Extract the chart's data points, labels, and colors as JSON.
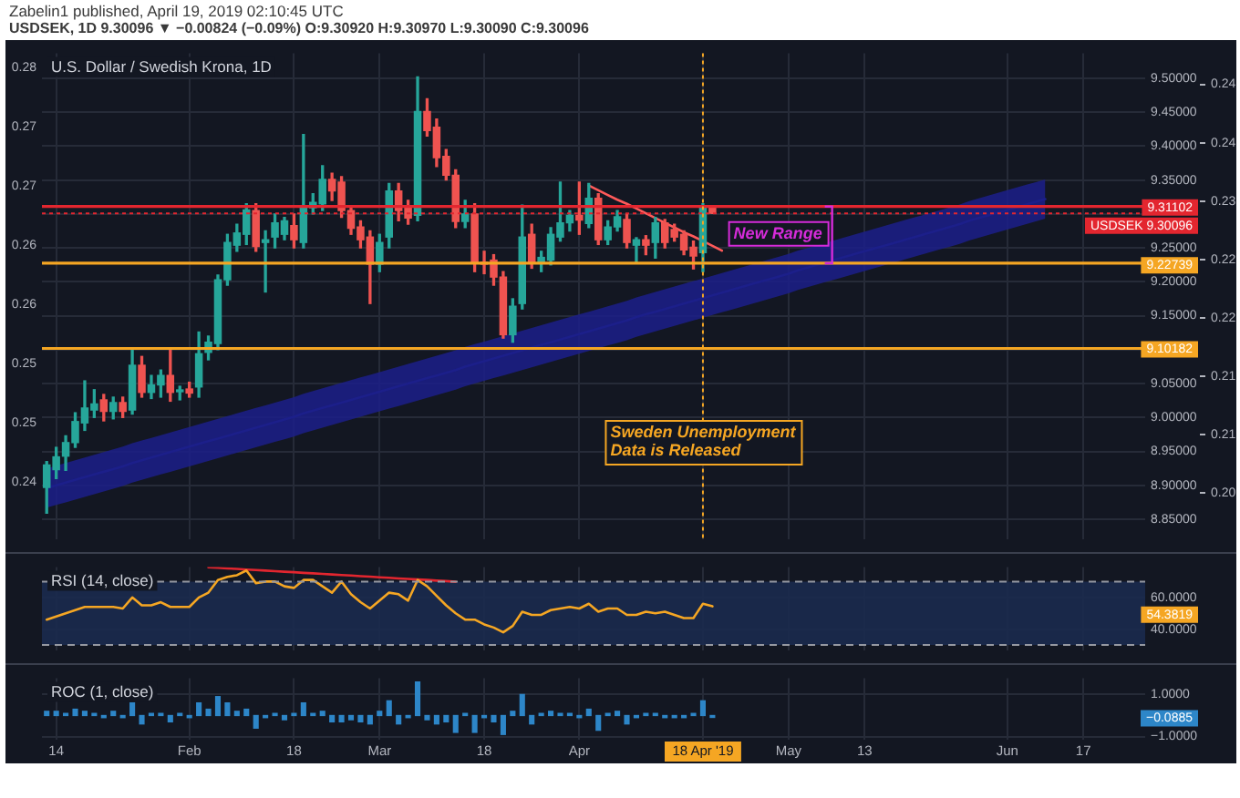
{
  "chart_data": [
    {
      "type": "candlestick",
      "title": "U.S. Dollar / Swedish Krona, 1D",
      "subtitle": "USDSEK, 1D  9.30096 ▼ −0.00824 (−0.09%)  O:9.30920  H:9.30970  L:9.30090  C:9.30096",
      "annotations": [
        "Zabelin1 published, April 19, 2019 02:10:45 UTC",
        "New Range"
      ],
      "categories": [
        null,
        "14",
        null,
        null,
        null,
        null,
        null,
        null,
        null,
        null,
        null,
        null,
        null,
        null,
        null,
        "Feb",
        null,
        null,
        null,
        null,
        null,
        null,
        null,
        null,
        null,
        null,
        "18",
        null,
        null,
        null,
        null,
        null,
        null,
        null,
        null,
        "Mar",
        null,
        null,
        null,
        null,
        null,
        null,
        null,
        null,
        null,
        null,
        "18",
        null,
        null,
        null,
        null,
        null,
        null,
        null,
        null,
        null,
        "Apr",
        null,
        null,
        null,
        null,
        null,
        null,
        null,
        null,
        null,
        null,
        null,
        null,
        "18 Apr '19",
        null,
        null,
        null,
        null,
        null,
        null,
        null,
        null,
        "May",
        null,
        null,
        null,
        null,
        null,
        null,
        null,
        "13",
        null,
        null,
        null,
        null,
        null,
        null,
        null,
        null,
        null,
        null,
        null,
        null,
        null,
        null,
        "Jun",
        null,
        null,
        null,
        null,
        null,
        null,
        null,
        "17",
        null,
        null,
        null,
        null,
        null,
        null
      ],
      "ohlc": [
        [
          8.897,
          8.935,
          8.859,
          8.93
        ],
        [
          8.923,
          8.956,
          8.91,
          8.942
        ],
        [
          8.943,
          8.973,
          8.922,
          8.963
        ],
        [
          8.963,
          9.007,
          8.956,
          8.994
        ],
        [
          8.992,
          9.054,
          8.981,
          9.014
        ],
        [
          9.011,
          9.041,
          9.0,
          9.02
        ],
        [
          9.026,
          9.034,
          8.995,
          9.009
        ],
        [
          9.009,
          9.03,
          8.998,
          9.022
        ],
        [
          9.022,
          9.03,
          9.0,
          9.009
        ],
        [
          9.011,
          9.1,
          9.005,
          9.077
        ],
        [
          9.077,
          9.09,
          9.03,
          9.037
        ],
        [
          9.037,
          9.062,
          9.028,
          9.048
        ],
        [
          9.048,
          9.07,
          9.03,
          9.062
        ],
        [
          9.062,
          9.1,
          9.024,
          9.037
        ],
        [
          9.038,
          9.046,
          9.026,
          9.04
        ],
        [
          9.042,
          9.052,
          9.03,
          9.036
        ],
        [
          9.045,
          9.126,
          9.03,
          9.094
        ],
        [
          9.096,
          9.12,
          9.085,
          9.111
        ],
        [
          9.109,
          9.21,
          9.1,
          9.203
        ],
        [
          9.203,
          9.27,
          9.195,
          9.258
        ],
        [
          9.254,
          9.285,
          9.245,
          9.272
        ],
        [
          9.27,
          9.315,
          9.255,
          9.306
        ],
        [
          9.305,
          9.315,
          9.245,
          9.252
        ],
        [
          9.258,
          9.275,
          9.185,
          9.262
        ],
        [
          9.266,
          9.3,
          9.25,
          9.287
        ],
        [
          9.27,
          9.295,
          9.262,
          9.29
        ],
        [
          9.283,
          9.3,
          9.25,
          9.262
        ],
        [
          9.258,
          9.417,
          9.25,
          9.309
        ],
        [
          9.309,
          9.33,
          9.3,
          9.317
        ],
        [
          9.315,
          9.371,
          9.305,
          9.351
        ],
        [
          9.351,
          9.36,
          9.32,
          9.334
        ],
        [
          9.347,
          9.355,
          9.295,
          9.305
        ],
        [
          9.305,
          9.31,
          9.27,
          9.279
        ],
        [
          9.281,
          9.29,
          9.25,
          9.262
        ],
        [
          9.266,
          9.275,
          9.168,
          9.226
        ],
        [
          9.226,
          9.27,
          9.215,
          9.258
        ],
        [
          9.266,
          9.345,
          9.25,
          9.334
        ],
        [
          9.334,
          9.345,
          9.29,
          9.305
        ],
        [
          9.309,
          9.32,
          9.285,
          9.294
        ],
        [
          9.298,
          9.502,
          9.29,
          9.451
        ],
        [
          9.451,
          9.47,
          9.415,
          9.423
        ],
        [
          9.428,
          9.44,
          9.37,
          9.383
        ],
        [
          9.385,
          9.395,
          9.35,
          9.357
        ],
        [
          9.357,
          9.365,
          9.28,
          9.289
        ],
        [
          9.289,
          9.32,
          9.28,
          9.3
        ],
        [
          9.3,
          9.315,
          9.215,
          9.228
        ],
        [
          9.229,
          9.245,
          9.212,
          9.226
        ],
        [
          9.232,
          9.24,
          9.195,
          9.207
        ],
        [
          9.207,
          9.215,
          9.117,
          9.122
        ],
        [
          9.122,
          9.175,
          9.111,
          9.164
        ],
        [
          9.168,
          9.313,
          9.16,
          9.266
        ],
        [
          9.27,
          9.285,
          9.22,
          9.228
        ],
        [
          9.228,
          9.245,
          9.215,
          9.236
        ],
        [
          9.232,
          9.28,
          9.225,
          9.27
        ],
        [
          9.266,
          9.347,
          9.26,
          9.287
        ],
        [
          9.287,
          9.305,
          9.275,
          9.298
        ],
        [
          9.298,
          9.347,
          9.27,
          9.291
        ],
        [
          9.286,
          9.345,
          9.28,
          9.323
        ],
        [
          9.323,
          9.33,
          9.255,
          9.262
        ],
        [
          9.262,
          9.29,
          9.255,
          9.281
        ],
        [
          9.281,
          9.305,
          9.275,
          9.296
        ],
        [
          9.292,
          9.3,
          9.25,
          9.258
        ],
        [
          9.254,
          9.265,
          9.228,
          9.262
        ],
        [
          9.262,
          9.268,
          9.24,
          9.254
        ],
        [
          9.258,
          9.295,
          9.235,
          9.287
        ],
        [
          9.287,
          9.292,
          9.25,
          9.258
        ],
        [
          9.277,
          9.285,
          9.26,
          9.266
        ],
        [
          9.27,
          9.275,
          9.24,
          9.247
        ],
        [
          9.251,
          9.26,
          9.219,
          9.238
        ],
        [
          9.243,
          9.315,
          9.215,
          9.3092
        ],
        [
          9.3092,
          9.3097,
          9.3009,
          9.30096
        ],
        null,
        null,
        null,
        null,
        null,
        null,
        null,
        null,
        null,
        null,
        null,
        null,
        null,
        null,
        null,
        null,
        null,
        null,
        null,
        null,
        null,
        null,
        null,
        null,
        null,
        null,
        null,
        null,
        null,
        null,
        null,
        null,
        null,
        null,
        null,
        null,
        null,
        null,
        null,
        null,
        null,
        null,
        null,
        null,
        null
      ],
      "colors": [
        "#26a69a",
        "#26a69a",
        "#26a69a",
        "#26a69a",
        "#26a69a",
        "#26a69a",
        "#ef5350",
        "#26a69a",
        "#ef5350",
        "#26a69a",
        "#ef5350",
        "#26a69a",
        "#26a69a",
        "#ef5350",
        "#26a69a",
        "#ef5350",
        "#26a69a",
        "#26a69a",
        "#26a69a",
        "#26a69a",
        "#26a69a",
        "#26a69a",
        "#ef5350",
        "#26a69a",
        "#26a69a",
        "#26a69a",
        "#ef5350",
        "#26a69a",
        "#26a69a",
        "#26a69a",
        "#ef5350",
        "#ef5350",
        "#ef5350",
        "#ef5350",
        "#ef5350",
        "#26a69a",
        "#26a69a",
        "#ef5350",
        "#ef5350",
        "#26a69a",
        "#ef5350",
        "#ef5350",
        "#ef5350",
        "#ef5350",
        "#26a69a",
        "#ef5350",
        "#ef5350",
        "#ef5350",
        "#ef5350",
        "#26a69a",
        "#26a69a",
        "#ef5350",
        "#26a69a",
        "#26a69a",
        "#26a69a",
        "#26a69a",
        "#ef5350",
        "#26a69a",
        "#ef5350",
        "#26a69a",
        "#26a69a",
        "#ef5350",
        "#26a69a",
        "#ef5350",
        "#26a69a",
        "#ef5350",
        "#ef5350",
        "#ef5350",
        "#ef5350",
        "#26a69a",
        "#ef5350",
        null,
        null,
        null,
        null,
        null,
        null,
        null,
        null,
        null,
        null,
        null,
        null,
        null,
        null,
        null,
        null,
        null,
        null,
        null,
        null,
        null,
        null,
        null,
        null,
        null,
        null,
        null,
        null,
        null,
        null,
        null,
        null,
        null,
        null,
        null,
        null,
        null,
        null,
        null,
        null,
        null,
        null,
        null,
        null,
        null
      ],
      "series": [
        {
          "type": "line",
          "color": "#ff5a5a",
          "values": [
            null,
            null,
            null,
            null,
            null,
            null,
            null,
            null,
            null,
            null,
            null,
            null,
            null,
            null,
            null,
            null,
            null,
            null,
            null,
            null,
            null,
            null,
            null,
            null,
            null,
            null,
            null,
            null,
            null,
            null,
            null,
            null,
            null,
            null,
            null,
            null,
            null,
            null,
            null,
            null,
            null,
            null,
            null,
            null,
            null,
            null,
            null,
            null,
            null,
            null,
            null,
            null,
            null,
            null,
            null,
            null,
            null,
            9.342,
            9.335,
            9.328,
            9.321,
            9.315,
            9.308,
            9.301,
            9.294,
            9.287,
            9.28,
            9.273,
            9.267,
            9.26,
            9.253,
            9.246,
            null,
            null,
            null,
            null,
            null,
            null,
            null,
            null,
            null,
            null,
            null,
            null,
            null,
            null,
            null,
            null,
            null,
            null,
            null,
            null,
            null,
            null,
            null,
            null,
            null,
            null,
            null,
            null,
            null,
            null,
            null,
            null,
            null,
            null,
            null,
            null,
            null,
            null,
            null,
            null,
            null,
            null,
            null,
            null
          ]
        },
        {
          "type": "line",
          "color": "#1c1f8a",
          "values": [
            8.896,
            8.9,
            8.904,
            8.908,
            8.912,
            8.916,
            8.92,
            8.924,
            8.928,
            8.933,
            8.937,
            8.941,
            8.945,
            8.949,
            8.953,
            8.957,
            8.961,
            8.965,
            8.969,
            8.973,
            8.977,
            8.981,
            8.985,
            8.989,
            8.993,
            8.997,
            9.001,
            9.006,
            9.01,
            9.014,
            9.018,
            9.022,
            9.026,
            9.03,
            9.034,
            9.038,
            9.042,
            9.046,
            9.05,
            9.054,
            9.058,
            9.062,
            9.066,
            9.07,
            9.075,
            9.079,
            9.083,
            9.087,
            9.091,
            9.095,
            9.099,
            9.103,
            9.107,
            9.111,
            9.115,
            9.119,
            9.123,
            9.127,
            9.131,
            9.135,
            9.139,
            9.143,
            9.148,
            9.152,
            9.156,
            9.16,
            9.164,
            9.168,
            9.172,
            9.176,
            9.18,
            9.184,
            9.188,
            9.192,
            9.196,
            9.2,
            9.204,
            9.208,
            9.212,
            9.217,
            9.221,
            9.225,
            9.229,
            9.233,
            9.237,
            9.241,
            9.245,
            9.249,
            9.253,
            9.257,
            9.261,
            9.265,
            9.269,
            9.273,
            9.277,
            9.281,
            9.285,
            9.29,
            9.294,
            9.298,
            9.302,
            9.306,
            9.31,
            9.314,
            9.318,
            9.322,
            null,
            null,
            null,
            null,
            null,
            null,
            null,
            null,
            null,
            null
          ],
          "lower": [
            8.867,
            8.871,
            8.875,
            8.879,
            8.883,
            8.887,
            8.891,
            8.895,
            8.899,
            8.904,
            8.908,
            8.912,
            8.916,
            8.92,
            8.924,
            8.928,
            8.932,
            8.936,
            8.94,
            8.944,
            8.948,
            8.952,
            8.956,
            8.96,
            8.964,
            8.968,
            8.972,
            8.977,
            8.981,
            8.985,
            8.989,
            8.993,
            8.997,
            9.001,
            9.005,
            9.009,
            9.013,
            9.017,
            9.021,
            9.025,
            9.029,
            9.033,
            9.037,
            9.041,
            9.046,
            9.05,
            9.054,
            9.058,
            9.062,
            9.066,
            9.07,
            9.074,
            9.078,
            9.082,
            9.086,
            9.09,
            9.094,
            9.098,
            9.102,
            9.106,
            9.11,
            9.114,
            9.119,
            9.123,
            9.127,
            9.131,
            9.135,
            9.139,
            9.143,
            9.147,
            9.151,
            9.155,
            9.159,
            9.163,
            9.167,
            9.171,
            9.175,
            9.179,
            9.183,
            9.188,
            9.192,
            9.196,
            9.2,
            9.204,
            9.208,
            9.212,
            9.216,
            9.22,
            9.224,
            9.228,
            9.232,
            9.236,
            9.24,
            9.244,
            9.248,
            9.252,
            9.256,
            9.261,
            9.265,
            9.269,
            9.273,
            9.277,
            9.281,
            9.285,
            9.289,
            9.293,
            null,
            null,
            null,
            null,
            null,
            null,
            null,
            null,
            null,
            null
          ],
          "upper": [
            8.925,
            8.929,
            8.933,
            8.937,
            8.941,
            8.945,
            8.949,
            8.953,
            8.957,
            8.962,
            8.966,
            8.97,
            8.974,
            8.978,
            8.982,
            8.986,
            8.99,
            8.994,
            8.998,
            9.002,
            9.006,
            9.01,
            9.014,
            9.018,
            9.022,
            9.026,
            9.03,
            9.035,
            9.039,
            9.043,
            9.047,
            9.051,
            9.055,
            9.059,
            9.063,
            9.067,
            9.071,
            9.075,
            9.079,
            9.083,
            9.087,
            9.091,
            9.095,
            9.099,
            9.104,
            9.108,
            9.112,
            9.116,
            9.12,
            9.124,
            9.128,
            9.132,
            9.136,
            9.14,
            9.144,
            9.148,
            9.152,
            9.156,
            9.16,
            9.164,
            9.168,
            9.172,
            9.177,
            9.181,
            9.185,
            9.189,
            9.193,
            9.197,
            9.201,
            9.205,
            9.209,
            9.213,
            9.217,
            9.221,
            9.225,
            9.229,
            9.233,
            9.237,
            9.241,
            9.246,
            9.25,
            9.254,
            9.258,
            9.262,
            9.266,
            9.27,
            9.274,
            9.278,
            9.282,
            9.286,
            9.29,
            9.294,
            9.298,
            9.302,
            9.306,
            9.31,
            9.314,
            9.319,
            9.323,
            9.327,
            9.331,
            9.335,
            9.339,
            9.343,
            9.347,
            9.351,
            null,
            null,
            null,
            null,
            null,
            null,
            null,
            null,
            null,
            null
          ]
        }
      ],
      "ylim": [
        8.821,
        9.537
      ],
      "yticks": [
        {
          "value": 8.85,
          "label": "8.85000"
        },
        {
          "value": 8.9,
          "label": "8.90000"
        },
        {
          "value": 8.95,
          "label": "8.95000"
        },
        {
          "value": 9,
          "label": "9.00000"
        },
        {
          "value": 9.05,
          "label": "9.05000"
        },
        {
          "value": 9.1,
          "label": null
        },
        {
          "value": 9.15,
          "label": "9.15000"
        },
        {
          "value": 9.2,
          "label": "9.20000"
        },
        {
          "value": 9.25,
          "label": "9.25000"
        },
        {
          "value": 9.3,
          "label": null
        },
        {
          "value": 9.35,
          "label": "9.35000"
        },
        {
          "value": 9.4,
          "label": "9.40000"
        },
        {
          "value": 9.45,
          "label": "9.45000"
        },
        {
          "value": 9.5,
          "label": "9.50000"
        }
      ],
      "y2lim": [
        0.2382,
        0.2792
      ],
      "y2ticks": [
        {
          "value": 0.243,
          "label": "0.24"
        },
        {
          "value": 0.248,
          "label": "0.25"
        },
        {
          "value": 0.253,
          "label": "0.25"
        },
        {
          "value": 0.258,
          "label": "0.26"
        },
        {
          "value": 0.263,
          "label": "0.26"
        },
        {
          "value": 0.268,
          "label": "0.27"
        },
        {
          "value": 0.273,
          "label": "0.27"
        },
        {
          "value": 0.278,
          "label": "0.28"
        }
      ],
      "y3lim": [
        0.1953,
        0.2452
      ],
      "y3ticks": [
        {
          "value": 0.2,
          "label": "0.20"
        },
        {
          "value": 0.206,
          "label": "0.21"
        },
        {
          "value": 0.212,
          "label": "0.21"
        },
        {
          "value": 0.218,
          "label": "0.22"
        },
        {
          "value": 0.224,
          "label": "0.22"
        },
        {
          "value": 0.23,
          "label": "0.23"
        },
        {
          "value": 0.236,
          "label": "0.24"
        },
        {
          "value": 0.242,
          "label": "0.24"
        }
      ],
      "ref_lines": [
        {
          "axis": "y",
          "value": 9.31102,
          "label": "9.31102",
          "color": "#e3262f"
        },
        {
          "axis": "y",
          "value": 9.30096,
          "label": "USDSEK 9.30096",
          "color": "#e3262f",
          "line_style": "dotted"
        },
        {
          "axis": "y",
          "value": 9.22739,
          "label": "9.22739",
          "color": "#f5a623"
        },
        {
          "axis": "y",
          "value": 9.10182,
          "label": "9.10182",
          "color": "#f5a623"
        },
        {
          "axis": "x",
          "value": "18 Apr '19",
          "label": "Sweden Unemployment Data is Released",
          "color": "#f5a623",
          "line_style": "dotted"
        }
      ],
      "grid": true,
      "tick_labels": "y"
    },
    {
      "type": "line",
      "title": "RSI (14, close)",
      "annotations": [
        "54.3819"
      ],
      "categories": [
        null,
        "14",
        null,
        null,
        null,
        null,
        null,
        null,
        null,
        null,
        null,
        null,
        null,
        null,
        null,
        "Feb",
        null,
        null,
        null,
        null,
        null,
        null,
        null,
        null,
        null,
        null,
        "18",
        null,
        null,
        null,
        null,
        null,
        null,
        null,
        null,
        "Mar",
        null,
        null,
        null,
        null,
        null,
        null,
        null,
        null,
        null,
        null,
        "18",
        null,
        null,
        null,
        null,
        null,
        null,
        null,
        null,
        null,
        "Apr",
        null,
        null,
        null,
        null,
        null,
        null,
        null,
        null,
        null,
        null,
        null,
        null,
        "18 Apr '19",
        null,
        null,
        null,
        null,
        null,
        null,
        null,
        null,
        "May",
        null,
        null,
        null,
        null,
        null,
        null,
        null,
        "13",
        null,
        null,
        null,
        null,
        null,
        null,
        null,
        null,
        null,
        null,
        null,
        null,
        null,
        null,
        "Jun",
        null,
        null,
        null,
        null,
        null,
        null,
        null,
        "17",
        null,
        null,
        null,
        null,
        null,
        null
      ],
      "series": [
        {
          "color": "#f5a623",
          "values": [
            46,
            48,
            50,
            52,
            54,
            54,
            54,
            54,
            53,
            60,
            55,
            55,
            57,
            54,
            54,
            54,
            60,
            63,
            71,
            73,
            74,
            77,
            69,
            70,
            70,
            67,
            66,
            71,
            71,
            67,
            63,
            70,
            62,
            57,
            53,
            58,
            63,
            62,
            58,
            71,
            67,
            61,
            55,
            50,
            46,
            46,
            43,
            41,
            38,
            42,
            51,
            49,
            49,
            52,
            53,
            54,
            53,
            56,
            51,
            53,
            53,
            49,
            49,
            51,
            50,
            51,
            49,
            47,
            47,
            56,
            54.3819,
            null,
            null,
            null,
            null,
            null,
            null,
            null,
            null,
            null,
            null,
            null,
            null,
            null,
            null,
            null,
            null,
            null,
            null,
            null,
            null,
            null,
            null,
            null,
            null,
            null,
            null,
            null,
            null,
            null,
            null,
            null,
            null,
            null,
            null,
            null,
            null,
            null,
            null,
            null,
            null,
            null,
            null,
            null,
            null,
            null
          ]
        },
        {
          "type": "line",
          "color": "#e3262f",
          "values": [
            null,
            null,
            null,
            null,
            null,
            null,
            null,
            null,
            null,
            null,
            null,
            null,
            null,
            null,
            null,
            null,
            null,
            79.0,
            78.7,
            78.3,
            78.0,
            77.6,
            77.3,
            76.9,
            76.6,
            76.2,
            75.9,
            75.5,
            75.2,
            74.8,
            74.5,
            74.1,
            73.8,
            73.4,
            73.1,
            72.7,
            72.4,
            72.0,
            71.7,
            71.3,
            71.0,
            70.6,
            70.3,
            69.9,
            null,
            null,
            null,
            null,
            null,
            null,
            null,
            null,
            null,
            null,
            null,
            null,
            null,
            null,
            null,
            null,
            null,
            null,
            null,
            null,
            null,
            null,
            null,
            null,
            null,
            null,
            null,
            null,
            null,
            null,
            null,
            null,
            null,
            null,
            null,
            null,
            null,
            null,
            null,
            null,
            null,
            null,
            null,
            null,
            null,
            null,
            null,
            null,
            null,
            null,
            null,
            null,
            null,
            null,
            null,
            null,
            null,
            null,
            null,
            null,
            null,
            null,
            null,
            null,
            null,
            null,
            null,
            null,
            null,
            null,
            null,
            null
          ]
        }
      ],
      "ylim": [
        26.8,
        79.2
      ],
      "yticks": [
        {
          "value": 40,
          "label": "40.0000"
        },
        {
          "value": 60,
          "label": "60.0000"
        }
      ],
      "bands": [
        {
          "axis": "y",
          "from": 30,
          "to": 70,
          "color": "#1b2a4e"
        }
      ],
      "ref_lines": [
        {
          "axis": "y",
          "value": 70,
          "color": "#9598a1",
          "line_style": "dashed"
        },
        {
          "axis": "y",
          "value": 30,
          "color": "#9598a1",
          "line_style": "dashed"
        }
      ],
      "grid": true,
      "tick_labels": "y"
    },
    {
      "type": "bar",
      "title": "ROC (1, close)",
      "annotations": [
        "−0.0885"
      ],
      "categories": [
        null,
        "14",
        null,
        null,
        null,
        null,
        null,
        null,
        null,
        null,
        null,
        null,
        null,
        null,
        null,
        "Feb",
        null,
        null,
        null,
        null,
        null,
        null,
        null,
        null,
        null,
        null,
        "18",
        null,
        null,
        null,
        null,
        null,
        null,
        null,
        null,
        "Mar",
        null,
        null,
        null,
        null,
        null,
        null,
        null,
        null,
        null,
        null,
        "18",
        null,
        null,
        null,
        null,
        null,
        null,
        null,
        null,
        null,
        "Apr",
        null,
        null,
        null,
        null,
        null,
        null,
        null,
        null,
        null,
        null,
        null,
        null,
        "18 Apr '19",
        null,
        null,
        null,
        null,
        null,
        null,
        null,
        null,
        "May",
        null,
        null,
        null,
        null,
        null,
        null,
        null,
        "13",
        null,
        null,
        null,
        null,
        null,
        null,
        null,
        null,
        null,
        null,
        null,
        null,
        null,
        null,
        "Jun",
        null,
        null,
        null,
        null,
        null,
        null,
        null,
        "17",
        null,
        null,
        null,
        null,
        null,
        null
      ],
      "values": [
        0.2,
        0.2,
        0.1,
        0.3,
        0.2,
        0.1,
        -0.1,
        0.2,
        -0.1,
        0.6,
        -0.4,
        0.1,
        0.1,
        -0.3,
        0.1,
        -0.1,
        0.6,
        0.3,
        0.9,
        0.6,
        0.2,
        0.3,
        -0.6,
        -0.1,
        0.1,
        -0.2,
        0.1,
        0.6,
        0.1,
        0.2,
        -0.3,
        -0.3,
        -0.2,
        -0.3,
        -0.4,
        0.2,
        0.7,
        -0.4,
        -0.1,
        1.6,
        -0.2,
        -0.4,
        -0.3,
        -0.8,
        0.1,
        -0.8,
        -0.1,
        -0.3,
        -0.9,
        0.2,
        1.0,
        -0.4,
        0.1,
        0.2,
        0.1,
        0.1,
        -0.1,
        0.3,
        -0.7,
        0.1,
        0.2,
        -0.4,
        -0.1,
        0.1,
        0.1,
        -0.1,
        -0.1,
        -0.1,
        0.1,
        0.7,
        -0.0885,
        null,
        null,
        null,
        null,
        null,
        null,
        null,
        null,
        null,
        null,
        null,
        null,
        null,
        null,
        null,
        null,
        null,
        null,
        null,
        null,
        null,
        null,
        null,
        null,
        null,
        null,
        null,
        null,
        null,
        null,
        null,
        null,
        null,
        null,
        null,
        null,
        null,
        null,
        null,
        null,
        null,
        null,
        null,
        null,
        null
      ],
      "color": "#2d86c8",
      "ylim": [
        -1.15,
        1.78
      ],
      "yticks": [
        {
          "value": -1,
          "label": "−1.0000"
        },
        {
          "value": 1,
          "label": "1.0000"
        }
      ],
      "grid": true
    }
  ]
}
